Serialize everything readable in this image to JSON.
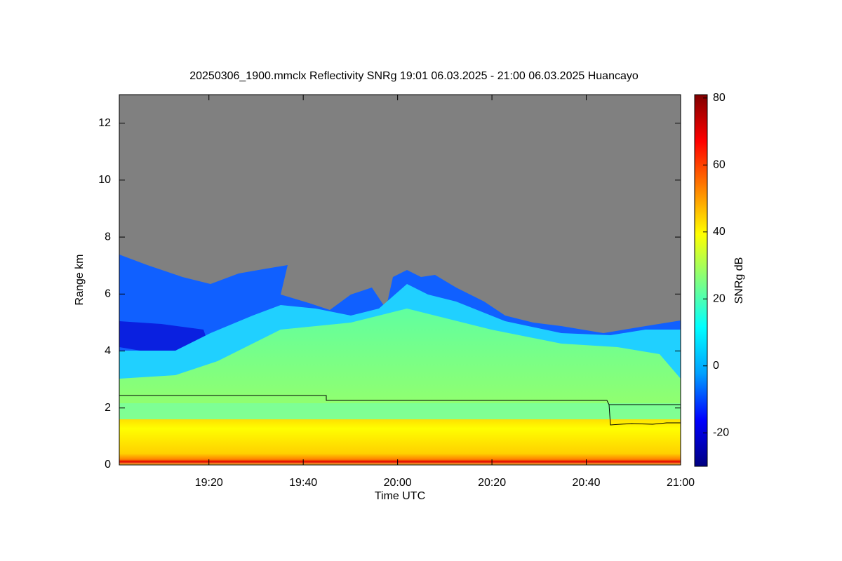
{
  "chart_data": {
    "type": "heatmap",
    "title": "20250306_1900.mmclx Reflectivity SNRg   19:01 06.03.2025 - 21:00 06.03.2025 Huancayo",
    "x_label": "Time UTC",
    "y_label": "Range km",
    "colorbar_label": "SNRg dB",
    "xlim": [
      1,
      120
    ],
    "xticks": [
      {
        "value": 20,
        "label": "19:20"
      },
      {
        "value": 40,
        "label": "19:40"
      },
      {
        "value": 60,
        "label": "20:00"
      },
      {
        "value": 80,
        "label": "20:20"
      },
      {
        "value": 100,
        "label": "20:40"
      },
      {
        "value": 120,
        "label": "21:00"
      }
    ],
    "ylim": [
      0,
      13
    ],
    "yticks": [
      0,
      2,
      4,
      6,
      8,
      10,
      12
    ],
    "clim": [
      -30,
      81
    ],
    "cticks": [
      -20,
      0,
      20,
      40,
      60,
      80
    ],
    "colormap": [
      "#000080",
      "#0000ff",
      "#00a0ff",
      "#00ffff",
      "#80ff80",
      "#ffff00",
      "#ff8000",
      "#ff0000",
      "#800000"
    ]
  }
}
